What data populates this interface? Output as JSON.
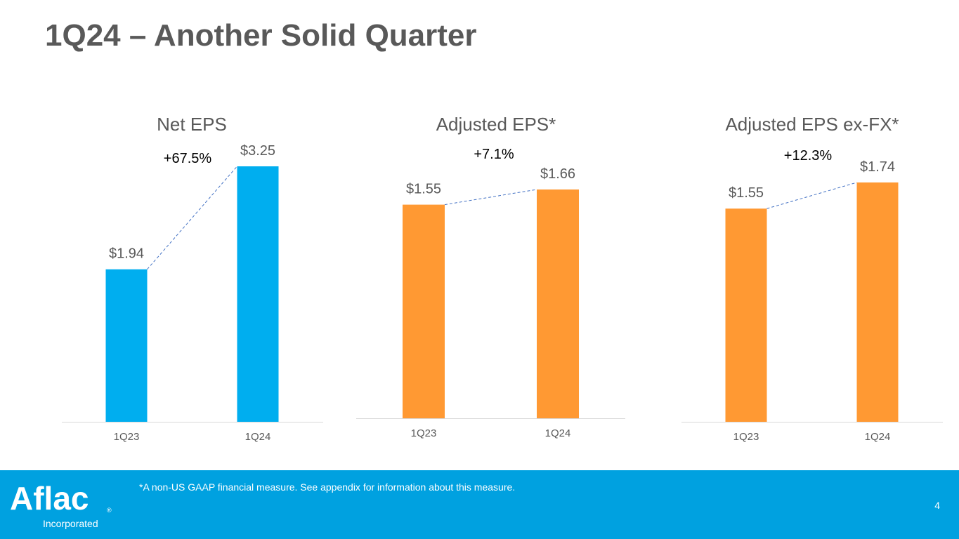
{
  "slide": {
    "title": "1Q24 – Another Solid Quarter",
    "footnote": "*A non-US GAAP financial measure. See appendix for information about this measure.",
    "page_number": "4",
    "logo": {
      "wordmark": "Aflac",
      "registered": "®",
      "subtitle": "Incorporated"
    }
  },
  "colors": {
    "title": "#595959",
    "blue_bar": "#00aeef",
    "orange_bar": "#ff9933",
    "footer_bg": "#00a1e0",
    "trend_line": "#4472c4",
    "axis_text": "#595959",
    "growth_text": "#000000"
  },
  "chart_data": [
    {
      "type": "bar",
      "title": "Net EPS",
      "categories": [
        "1Q23",
        "1Q24"
      ],
      "values": [
        1.94,
        3.25
      ],
      "data_labels": [
        "$1.94",
        "$3.25"
      ],
      "growth_label": "+67.5%",
      "color": "#00aeef",
      "ylim": [
        0,
        3.25
      ],
      "xlabel": "",
      "ylabel": ""
    },
    {
      "type": "bar",
      "title": "Adjusted EPS*",
      "categories": [
        "1Q23",
        "1Q24"
      ],
      "values": [
        1.55,
        1.66
      ],
      "data_labels": [
        "$1.55",
        "$1.66"
      ],
      "growth_label": "+7.1%",
      "color": "#ff9933",
      "ylim": [
        0,
        1.66
      ],
      "xlabel": "",
      "ylabel": ""
    },
    {
      "type": "bar",
      "title": "Adjusted EPS ex-FX*",
      "categories": [
        "1Q23",
        "1Q24"
      ],
      "values": [
        1.55,
        1.74
      ],
      "data_labels": [
        "$1.55",
        "$1.74"
      ],
      "growth_label": "+12.3%",
      "color": "#ff9933",
      "ylim": [
        0,
        1.74
      ],
      "xlabel": "",
      "ylabel": ""
    }
  ]
}
